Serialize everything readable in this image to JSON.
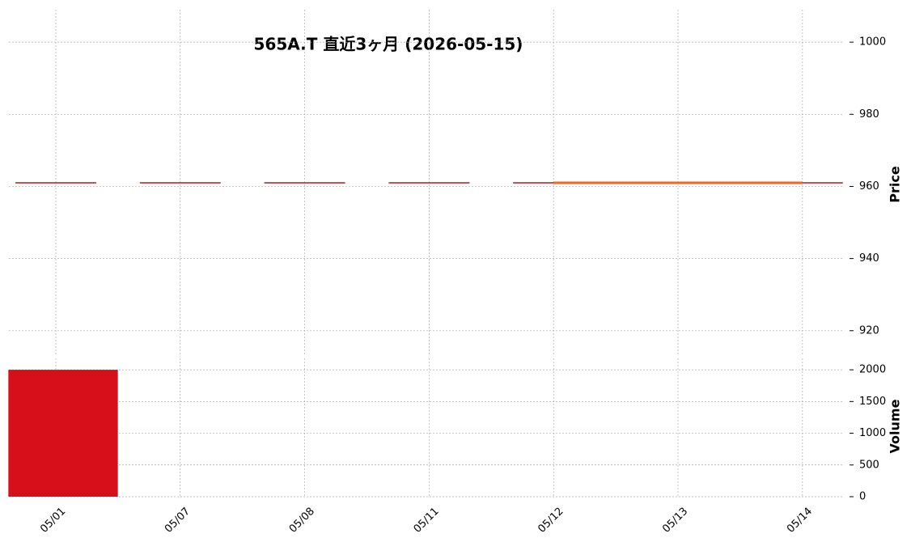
{
  "chart_data": {
    "type": "candlestick",
    "title": "565A.T 直近3ヶ月 (2026-05-15)",
    "categories": [
      "05/01",
      "05/07",
      "05/08",
      "05/11",
      "05/12",
      "05/13",
      "05/14"
    ],
    "open": [
      961,
      961,
      961,
      961,
      961,
      961,
      961
    ],
    "high": [
      961,
      961,
      961,
      961,
      961,
      961,
      961
    ],
    "low": [
      961,
      961,
      961,
      961,
      961,
      961,
      961
    ],
    "close": [
      961,
      961,
      961,
      961,
      961,
      961,
      961
    ],
    "candle_color": "#b01c1c",
    "moving_average": {
      "color": "#f26522",
      "values": [
        null,
        null,
        null,
        null,
        961,
        961,
        961
      ]
    },
    "volume": [
      2000,
      0,
      0,
      0,
      0,
      0,
      0
    ],
    "volume_color": "#d60f1a",
    "y_label": "Price",
    "ylim": [
      913,
      1009
    ],
    "yticks": [
      920,
      940,
      960,
      980,
      1000
    ],
    "volume_label": "Volume",
    "volume_ylim": [
      0,
      2180
    ],
    "volume_yticks": [
      0,
      500,
      1000,
      1500,
      2000
    ],
    "grid": true
  }
}
